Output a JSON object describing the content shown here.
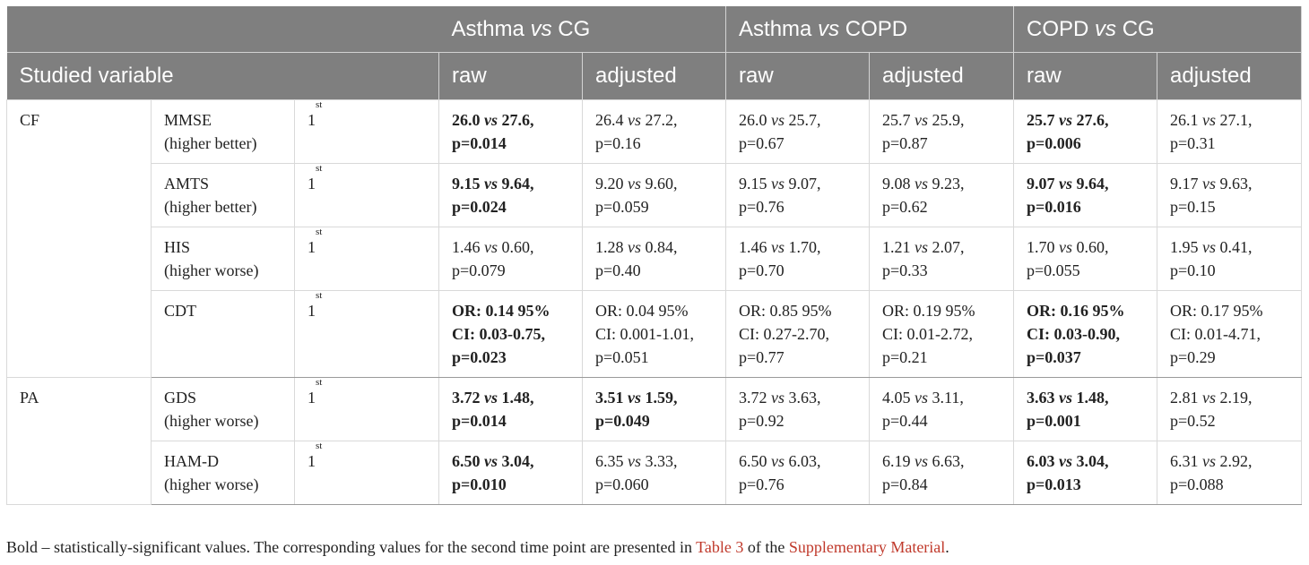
{
  "header": {
    "comparisons": [
      "Asthma vs CG",
      "Asthma vs COPD",
      "COPD vs CG"
    ],
    "comparison_parts": [
      {
        "a": "Asthma",
        "vs": "vs",
        "b": "CG"
      },
      {
        "a": "Asthma",
        "vs": "vs",
        "b": "COPD"
      },
      {
        "a": "COPD",
        "vs": "vs",
        "b": "CG"
      }
    ],
    "studied_variable": "Studied variable",
    "raw": "raw",
    "adjusted": "adjusted"
  },
  "groups": [
    {
      "label": "CF",
      "rows": [
        {
          "test": "MMSE",
          "direction": "(higher better)",
          "time": "1",
          "time_sup": "st",
          "cells": [
            {
              "a": "26.0",
              "b": "27.6,",
              "p": "p=0.014",
              "bold": true
            },
            {
              "a": "26.4",
              "b": "27.2,",
              "p": "p=0.16",
              "bold": false
            },
            {
              "a": "26.0",
              "b": "25.7,",
              "p": "p=0.67",
              "bold": false
            },
            {
              "a": "25.7",
              "b": "25.9,",
              "p": "p=0.87",
              "bold": false
            },
            {
              "a": "25.7",
              "b": "27.6,",
              "p": "p=0.006",
              "bold": true
            },
            {
              "a": "26.1",
              "b": "27.1,",
              "p": "p=0.31",
              "bold": false
            }
          ]
        },
        {
          "test": "AMTS",
          "direction": "(higher better)",
          "time": "1",
          "time_sup": "st",
          "cells": [
            {
              "a": "9.15",
              "b": "9.64,",
              "p": "p=0.024",
              "bold": true
            },
            {
              "a": "9.20",
              "b": "9.60,",
              "p": "p=0.059",
              "bold": false
            },
            {
              "a": "9.15",
              "b": "9.07,",
              "p": "p=0.76",
              "bold": false
            },
            {
              "a": "9.08",
              "b": "9.23,",
              "p": "p=0.62",
              "bold": false
            },
            {
              "a": "9.07",
              "b": "9.64,",
              "p": "p=0.016",
              "bold": true
            },
            {
              "a": "9.17",
              "b": "9.63,",
              "p": "p=0.15",
              "bold": false
            }
          ]
        },
        {
          "test": "HIS",
          "direction": "(higher worse)",
          "time": "1",
          "time_sup": "st",
          "cells": [
            {
              "a": "1.46",
              "b": "0.60,",
              "p": "p=0.079",
              "bold": false
            },
            {
              "a": "1.28",
              "b": "0.84,",
              "p": "p=0.40",
              "bold": false
            },
            {
              "a": "1.46",
              "b": "1.70,",
              "p": "p=0.70",
              "bold": false
            },
            {
              "a": "1.21",
              "b": "2.07,",
              "p": "p=0.33",
              "bold": false
            },
            {
              "a": "1.70",
              "b": "0.60,",
              "p": "p=0.055",
              "bold": false
            },
            {
              "a": "1.95",
              "b": "0.41,",
              "p": "p=0.10",
              "bold": false
            }
          ]
        },
        {
          "test": "CDT",
          "direction": "",
          "time": "1",
          "time_sup": "st",
          "cells": [
            {
              "l1": "OR: 0.14 95%",
              "l2": "CI: 0.03-0.75,",
              "l3": "p=0.023",
              "bold": true
            },
            {
              "l1": "OR: 0.04 95%",
              "l2": "CI: 0.001-1.01,",
              "l3": "p=0.051",
              "bold": false
            },
            {
              "l1": "OR: 0.85 95%",
              "l2": "CI: 0.27-2.70,",
              "l3": "p=0.77",
              "bold": false
            },
            {
              "l1": "OR: 0.19 95%",
              "l2": "CI: 0.01-2.72,",
              "l3": "p=0.21",
              "bold": false
            },
            {
              "l1": "OR: 0.16 95%",
              "l2": "CI: 0.03-0.90,",
              "l3": "p=0.037",
              "bold": true
            },
            {
              "l1": "OR: 0.17 95%",
              "l2": "CI: 0.01-4.71,",
              "l3": "p=0.29",
              "bold": false
            }
          ]
        }
      ]
    },
    {
      "label": "PA",
      "rows": [
        {
          "test": "GDS",
          "direction": "(higher worse)",
          "time": "1",
          "time_sup": "st",
          "cells": [
            {
              "a": "3.72",
              "b": "1.48,",
              "p": "p=0.014",
              "bold": true
            },
            {
              "a": "3.51",
              "b": "1.59,",
              "p": "p=0.049",
              "bold": true
            },
            {
              "a": "3.72",
              "b": "3.63,",
              "p": "p=0.92",
              "bold": false
            },
            {
              "a": "4.05",
              "b": "3.11,",
              "p": "p=0.44",
              "bold": false
            },
            {
              "a": "3.63",
              "b": "1.48,",
              "p": "p=0.001",
              "bold": true
            },
            {
              "a": "2.81",
              "b": "2.19,",
              "p": "p=0.52",
              "bold": false
            }
          ]
        },
        {
          "test": "HAM-D",
          "direction": "(higher worse)",
          "time": "1",
          "time_sup": "st",
          "cells": [
            {
              "a": "6.50",
              "b": "3.04,",
              "p": "p=0.010",
              "bold": true
            },
            {
              "a": "6.35",
              "b": "3.33,",
              "p": "p=0.060",
              "bold": false
            },
            {
              "a": "6.50",
              "b": "6.03,",
              "p": "p=0.76",
              "bold": false
            },
            {
              "a": "6.19",
              "b": "6.63,",
              "p": "p=0.84",
              "bold": false
            },
            {
              "a": "6.03",
              "b": "3.04,",
              "p": "p=0.013",
              "bold": true
            },
            {
              "a": "6.31",
              "b": "2.92,",
              "p": "p=0.088",
              "bold": false
            }
          ]
        }
      ]
    }
  ],
  "vs_word": "vs",
  "footnote": {
    "text_before": "Bold – statistically-significant values. The corresponding values for the second time point are presented in ",
    "link1": "Table 3",
    "text_middle": " of the ",
    "link2": "Supplementary Material",
    "text_after": "."
  },
  "colors": {
    "header_bg": "#7f7f7f",
    "link": "#c0392b"
  }
}
